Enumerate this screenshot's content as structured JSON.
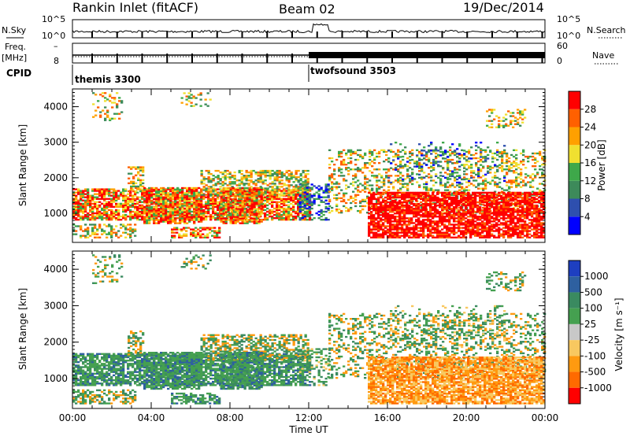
{
  "header": {
    "title": "Rankin Inlet (fitACF)",
    "beam": "Beam 02",
    "date": "19/Dec/2014"
  },
  "strips": {
    "nsky_label": "N.Sky",
    "nsearch_label": "N.Search",
    "freq_label": "Freq.",
    "freq_unit": "[MHz]",
    "nave_label": "Nave",
    "cpid_label": "CPID",
    "nsky_ticks": [
      "10^5",
      "10^0"
    ],
    "nsearch_ticks": [
      "10^5",
      "10^0"
    ],
    "freq_ticks": [
      "8"
    ],
    "nave_ticks": [
      "60",
      "0"
    ],
    "cpid_segments": [
      {
        "label": "themis 3300",
        "start_hour": 0
      },
      {
        "label": "twofsound 3503",
        "start_hour": 12
      }
    ]
  },
  "chart_data": [
    {
      "type": "heatmap",
      "name": "power",
      "ylabel": "Slant Range [km]",
      "ylim": [
        180,
        4500
      ],
      "yticks": [
        "1000",
        "2000",
        "3000",
        "4000"
      ],
      "xlim": [
        0,
        24
      ],
      "colorbar": {
        "label": "Power [dB]",
        "ticks": [
          "4",
          "8",
          "12",
          "16",
          "20",
          "24",
          "28"
        ],
        "colors": [
          "#0000ff",
          "#2e4fae",
          "#3d8a5a",
          "#3ea84a",
          "#f0e030",
          "#ffa000",
          "#ff6000",
          "#ff0000"
        ]
      }
    },
    {
      "type": "heatmap",
      "name": "velocity",
      "ylabel": "Slant Range [km]",
      "ylim": [
        180,
        4500
      ],
      "yticks": [
        "1000",
        "2000",
        "3000",
        "4000"
      ],
      "xlim": [
        0,
        24
      ],
      "xlabel": "Time UT",
      "xticks": [
        "00:00",
        "04:00",
        "08:00",
        "12:00",
        "16:00",
        "20:00",
        "00:00"
      ],
      "colorbar": {
        "label": "Velocity [m s⁻¹]",
        "ticks": [
          "1000",
          "500",
          "100",
          "25",
          "-25",
          "-100",
          "-500",
          "-1000"
        ],
        "colors": [
          "#1e3fc0",
          "#2e60a0",
          "#3a8a60",
          "#45a050",
          "#c8c8c8",
          "#f8c860",
          "#ff9a10",
          "#ff6a00",
          "#ff0000"
        ]
      }
    }
  ]
}
